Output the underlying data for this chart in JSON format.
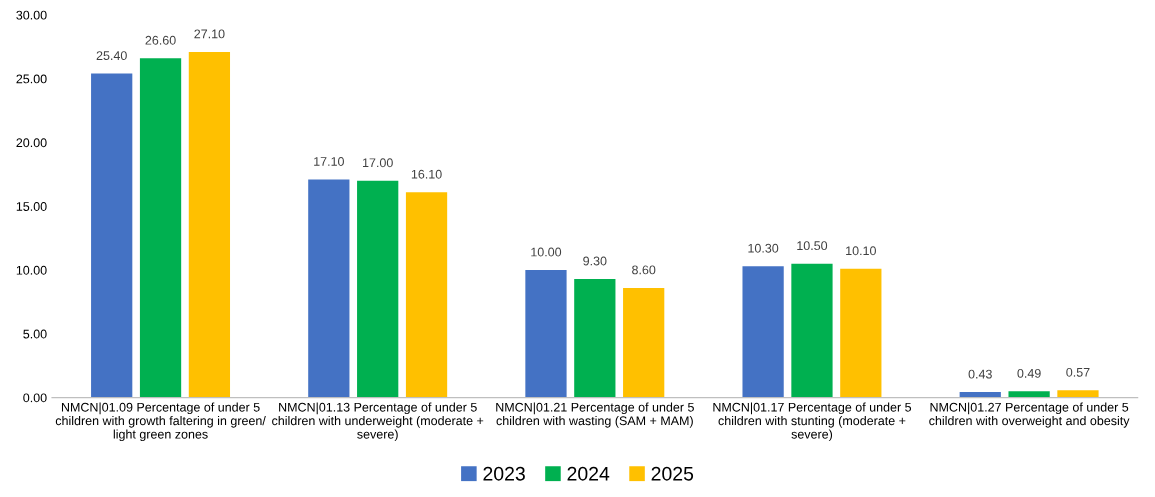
{
  "chart_data": {
    "type": "bar",
    "categories": [
      "NMCN|01.09 Percentage of under 5\nchildren with growth faltering in green/\nlight green zones",
      "NMCN|01.13 Percentage of under 5\nchildren with underweight (moderate +\nsevere)",
      "NMCN|01.21 Percentage of under 5\nchildren with wasting (SAM + MAM)",
      "NMCN|01.17 Percentage of under 5\nchildren with stunting (moderate +\nsevere)",
      "NMCN|01.27 Percentage of under 5\nchildren with overweight and obesity"
    ],
    "series": [
      {
        "name": "2023",
        "color": "#4472c4",
        "values": [
          25.4,
          17.1,
          10.0,
          10.3,
          0.43
        ],
        "value_labels": [
          "25.40",
          "17.10",
          "10.00",
          "10.30",
          "0.43"
        ]
      },
      {
        "name": "2024",
        "color": "#00b050",
        "values": [
          26.6,
          17.0,
          9.3,
          10.5,
          0.49
        ],
        "value_labels": [
          "26.60",
          "17.00",
          "9.30",
          "10.50",
          "0.49"
        ]
      },
      {
        "name": "2025",
        "color": "#ffc000",
        "values": [
          27.1,
          16.1,
          8.6,
          10.1,
          0.57
        ],
        "value_labels": [
          "27.10",
          "16.10",
          "8.60",
          "10.10",
          "0.57"
        ]
      }
    ],
    "ylim": [
      0,
      30
    ],
    "yticks": [
      {
        "value": 0,
        "label": "0.00"
      },
      {
        "value": 5,
        "label": "5.00"
      },
      {
        "value": 10,
        "label": "10.00"
      },
      {
        "value": 15,
        "label": "15.00"
      },
      {
        "value": 20,
        "label": "20.00"
      },
      {
        "value": 25,
        "label": "25.00"
      },
      {
        "value": 30,
        "label": "30.00"
      }
    ],
    "grid": false,
    "legend": "bottom"
  }
}
